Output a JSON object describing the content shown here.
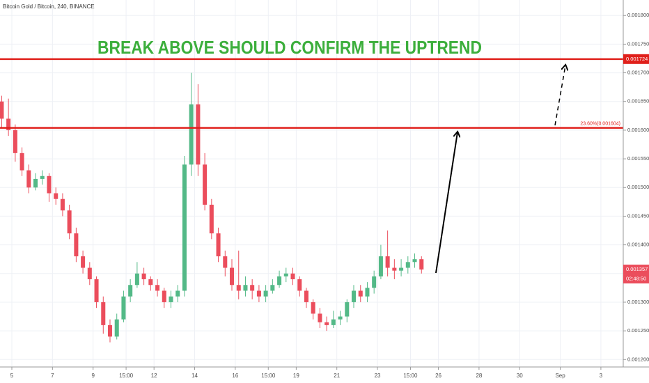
{
  "chart_data": {
    "type": "candlestick",
    "title": "Bitcoin Gold / Bitcoin, 240, BINANCE",
    "annotation": "BREAK ABOVE SHOULD CONFIRM THE UPTREND",
    "x": [
      4.5,
      4.833,
      5.167,
      5.5,
      5.833,
      6.167,
      6.5,
      6.833,
      7.167,
      7.5,
      7.833,
      8.167,
      8.5,
      8.833,
      9.167,
      9.5,
      9.833,
      10.167,
      10.5,
      10.833,
      11.167,
      11.5,
      11.833,
      12.167,
      12.5,
      12.833,
      13.167,
      13.5,
      13.833,
      14.167,
      14.5,
      14.833,
      15.167,
      15.5,
      15.833,
      16.167,
      16.5,
      16.833,
      17.167,
      17.5,
      17.833,
      18.167,
      18.5,
      18.833,
      19.167,
      19.5,
      19.833,
      20.167,
      20.5,
      20.833,
      21.167,
      21.5,
      21.833,
      22.167,
      22.5,
      22.833,
      23.167,
      23.5,
      23.833,
      24.167,
      24.5,
      24.833,
      25.167
    ],
    "open": [
      0.00165,
      0.00162,
      0.0016,
      0.00156,
      0.00153,
      0.0015,
      0.001515,
      0.00152,
      0.00149,
      0.00148,
      0.00146,
      0.00142,
      0.00138,
      0.00136,
      0.00134,
      0.0013,
      0.00126,
      0.00124,
      0.00127,
      0.00131,
      0.00133,
      0.00135,
      0.00134,
      0.00133,
      0.00132,
      0.0013,
      0.00131,
      0.00132,
      0.00154,
      0.001645,
      0.00154,
      0.00147,
      0.00142,
      0.00138,
      0.00136,
      0.00133,
      0.00132,
      0.00133,
      0.00132,
      0.00131,
      0.00132,
      0.00133,
      0.001345,
      0.00135,
      0.00134,
      0.00132,
      0.0013,
      0.00128,
      0.001265,
      0.00126,
      0.00127,
      0.001275,
      0.0013,
      0.00132,
      0.00131,
      0.001325,
      0.001345,
      0.00138,
      0.00136,
      0.001355,
      0.00136,
      0.00137,
      0.001375
    ],
    "high": [
      0.00166,
      0.001655,
      0.00161,
      0.00157,
      0.00154,
      0.001525,
      0.00153,
      0.001525,
      0.0015,
      0.00149,
      0.00147,
      0.00143,
      0.00139,
      0.00137,
      0.001345,
      0.00131,
      0.00127,
      0.00128,
      0.00132,
      0.00134,
      0.00137,
      0.00136,
      0.001345,
      0.00134,
      0.001325,
      0.00132,
      0.00133,
      0.001555,
      0.0017,
      0.00168,
      0.00156,
      0.00148,
      0.00143,
      0.00139,
      0.001375,
      0.00139,
      0.001345,
      0.00134,
      0.00133,
      0.00133,
      0.00134,
      0.001355,
      0.00136,
      0.00136,
      0.001345,
      0.001325,
      0.001305,
      0.00129,
      0.001275,
      0.001285,
      0.001285,
      0.001305,
      0.00133,
      0.00133,
      0.001335,
      0.001355,
      0.0014,
      0.001425,
      0.001375,
      0.001375,
      0.00138,
      0.001385,
      0.00138
    ],
    "low": [
      0.001605,
      0.00159,
      0.001545,
      0.00152,
      0.00149,
      0.001495,
      0.001505,
      0.001475,
      0.00147,
      0.00145,
      0.00141,
      0.00137,
      0.00135,
      0.00133,
      0.00129,
      0.001245,
      0.00123,
      0.001235,
      0.001265,
      0.0013,
      0.001325,
      0.00133,
      0.00132,
      0.00131,
      0.00129,
      0.00129,
      0.0013,
      0.00131,
      0.00152,
      0.00152,
      0.00146,
      0.00141,
      0.00137,
      0.001345,
      0.00132,
      0.001305,
      0.00131,
      0.001305,
      0.0013,
      0.0013,
      0.001315,
      0.001325,
      0.001335,
      0.00133,
      0.00131,
      0.00129,
      0.00127,
      0.001255,
      0.00125,
      0.001255,
      0.00126,
      0.001265,
      0.00129,
      0.0013,
      0.0013,
      0.001315,
      0.00134,
      0.001345,
      0.00134,
      0.001345,
      0.00135,
      0.00136,
      0.00135
    ],
    "close": [
      0.00162,
      0.0016,
      0.00156,
      0.00153,
      0.0015,
      0.001515,
      0.00152,
      0.00149,
      0.00148,
      0.00146,
      0.00142,
      0.00138,
      0.00136,
      0.00134,
      0.0013,
      0.00126,
      0.00124,
      0.00127,
      0.00131,
      0.00133,
      0.00135,
      0.00134,
      0.00133,
      0.00132,
      0.0013,
      0.00131,
      0.00132,
      0.00154,
      0.001645,
      0.00154,
      0.00147,
      0.00142,
      0.00138,
      0.00136,
      0.00133,
      0.00132,
      0.00133,
      0.00132,
      0.00131,
      0.00132,
      0.00133,
      0.001345,
      0.00135,
      0.00134,
      0.00132,
      0.0013,
      0.00128,
      0.001265,
      0.00126,
      0.00127,
      0.001275,
      0.0013,
      0.00132,
      0.00131,
      0.001325,
      0.001345,
      0.00138,
      0.00136,
      0.001355,
      0.00136,
      0.00137,
      0.001375,
      0.001357
    ],
    "up_color": "#53b987",
    "down_color": "#eb4d5c",
    "xlim": [
      4.417,
      35.1
    ],
    "xticks": [
      5,
      7,
      9,
      {
        "value": 10.625,
        "label": "15:00"
      },
      12,
      14,
      16,
      {
        "value": 17.625,
        "label": "15:00"
      },
      19,
      21,
      23,
      {
        "value": 24.625,
        "label": "15:00"
      },
      26,
      28,
      30,
      {
        "value": 32,
        "label": "Sep"
      },
      {
        "value": 34,
        "label": "3"
      }
    ],
    "ylim": [
      0.001187,
      0.001827
    ],
    "yticks": [
      {
        "value": 0.0012,
        "label": "0.001200"
      },
      {
        "value": 0.00125,
        "label": "0.001250"
      },
      {
        "value": 0.0013,
        "label": "0.001300"
      },
      {
        "value": 0.00135,
        "label": "0.001350"
      },
      {
        "value": 0.0014,
        "label": "0.001400"
      },
      {
        "value": 0.00145,
        "label": "0.001450"
      },
      {
        "value": 0.0015,
        "label": "0.001500"
      },
      {
        "value": 0.00155,
        "label": "0.001550"
      },
      {
        "value": 0.0016,
        "label": "0.001600"
      },
      {
        "value": 0.00165,
        "label": "0.001650"
      },
      {
        "value": 0.0017,
        "label": "0.001700"
      },
      {
        "value": 0.00175,
        "label": "0.001750"
      },
      {
        "value": 0.0018,
        "label": "0.001800"
      }
    ],
    "grid": true,
    "hlines": [
      {
        "value": 0.001724,
        "label": "0.001724",
        "color": "#e0201b"
      },
      {
        "value": 0.001604,
        "label": "23.60%(0.001604)",
        "color": "#e0201b"
      }
    ],
    "last_price": {
      "value": 0.001357,
      "label": "0.001357"
    },
    "countdown": "02:48:50"
  }
}
